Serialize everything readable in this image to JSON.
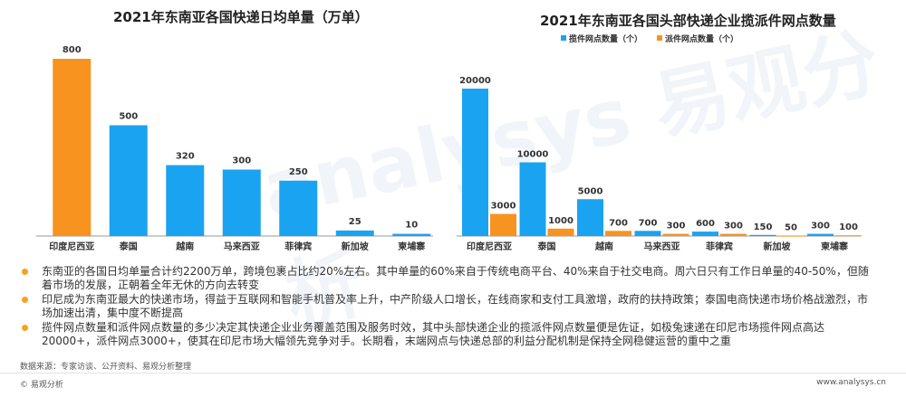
{
  "watermark": "analysys 易观分析",
  "chart_data": [
    {
      "type": "bar",
      "title": "2021年东南亚各国快递日均单量（万单）",
      "categories": [
        "印度尼西亚",
        "泰国",
        "越南",
        "马来西亚",
        "菲律宾",
        "新加坡",
        "柬埔寨"
      ],
      "values": [
        800,
        500,
        320,
        300,
        250,
        25,
        10
      ],
      "bar_colors": [
        "#f7931e",
        "#1aa3f0",
        "#1aa3f0",
        "#1aa3f0",
        "#1aa3f0",
        "#1aa3f0",
        "#1aa3f0"
      ],
      "ylim": [
        0,
        800
      ]
    },
    {
      "type": "bar",
      "title": "2021年东南亚各国头部快递企业揽派件网点数量",
      "categories": [
        "印度尼西亚",
        "泰国",
        "越南",
        "马来西亚",
        "菲律宾",
        "新加坡",
        "柬埔寨"
      ],
      "series": [
        {
          "name": "揽件网点数量（个）",
          "color": "#1aa3f0",
          "values": [
            20000,
            10000,
            5000,
            700,
            600,
            150,
            300
          ]
        },
        {
          "name": "派件网点数量（个）",
          "color": "#f7931e",
          "values": [
            3000,
            1000,
            700,
            300,
            300,
            50,
            100
          ]
        }
      ],
      "ylim": [
        0,
        20000
      ],
      "legend": "top-left"
    }
  ],
  "bullets": [
    "东南亚的各国日均单量合计约2200万单，跨境包裹占比约20%左右。其中单量的60%来自于传统电商平台、40%来自于社交电商。周六日只有工作日单量的40-50%，但随着市场的发展，正朝着全年无休的方向去转变",
    "印尼成为东南亚最大的快递市场，得益于互联网和智能手机普及率上升，中产阶级人口增长，在线商家和支付工具激增，政府的扶持政策；泰国电商快递市场价格战激烈，市场加速出清，集中度不断提高",
    "揽件网点数量和派件网点数量的多少决定其快递企业业务覆盖范围及服务时效，其中头部快递企业的揽派件网点数量便是佐证，如极兔速递在印尼市场揽件网点高达20000+，派件网点3000+，使其在印尼市场大幅领先竞争对手。长期看，末端网点与快递总部的利益分配机制是保持全网稳健运营的重中之重"
  ],
  "source": "数据来源：专家访谈、公开资料、易观分析整理",
  "footer": {
    "left": "© 易观分析",
    "right": "www.analysys.cn"
  }
}
